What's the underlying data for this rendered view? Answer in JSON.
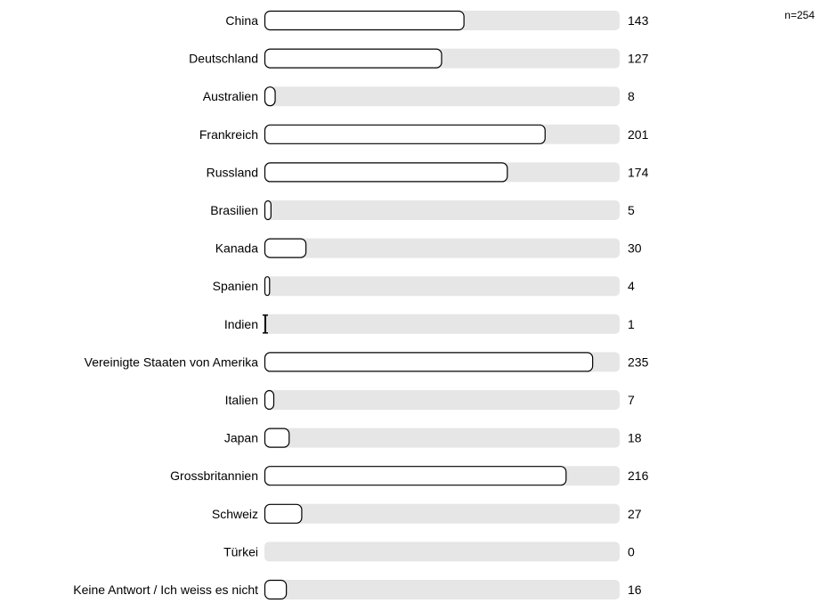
{
  "chart_data": {
    "type": "bar",
    "orientation": "horizontal",
    "sample_size_label": "n=254",
    "n": 254,
    "categories": [
      "China",
      "Deutschland",
      "Australien",
      "Frankreich",
      "Russland",
      "Brasilien",
      "Kanada",
      "Spanien",
      "Indien",
      "Vereinigte Staaten von Amerika",
      "Italien",
      "Japan",
      "Grossbritannien",
      "Schweiz",
      "Türkei",
      "Keine Antwort / Ich weiss es nicht"
    ],
    "values": [
      143,
      127,
      8,
      201,
      174,
      5,
      30,
      4,
      1,
      235,
      7,
      18,
      216,
      27,
      0,
      16
    ],
    "xlim": [
      0,
      254
    ],
    "grid": false,
    "legend": "none",
    "colors": {
      "track": "#e6e6e6",
      "bar_fill": "#ffffff",
      "bar_stroke": "#000000",
      "text": "#000000"
    }
  }
}
